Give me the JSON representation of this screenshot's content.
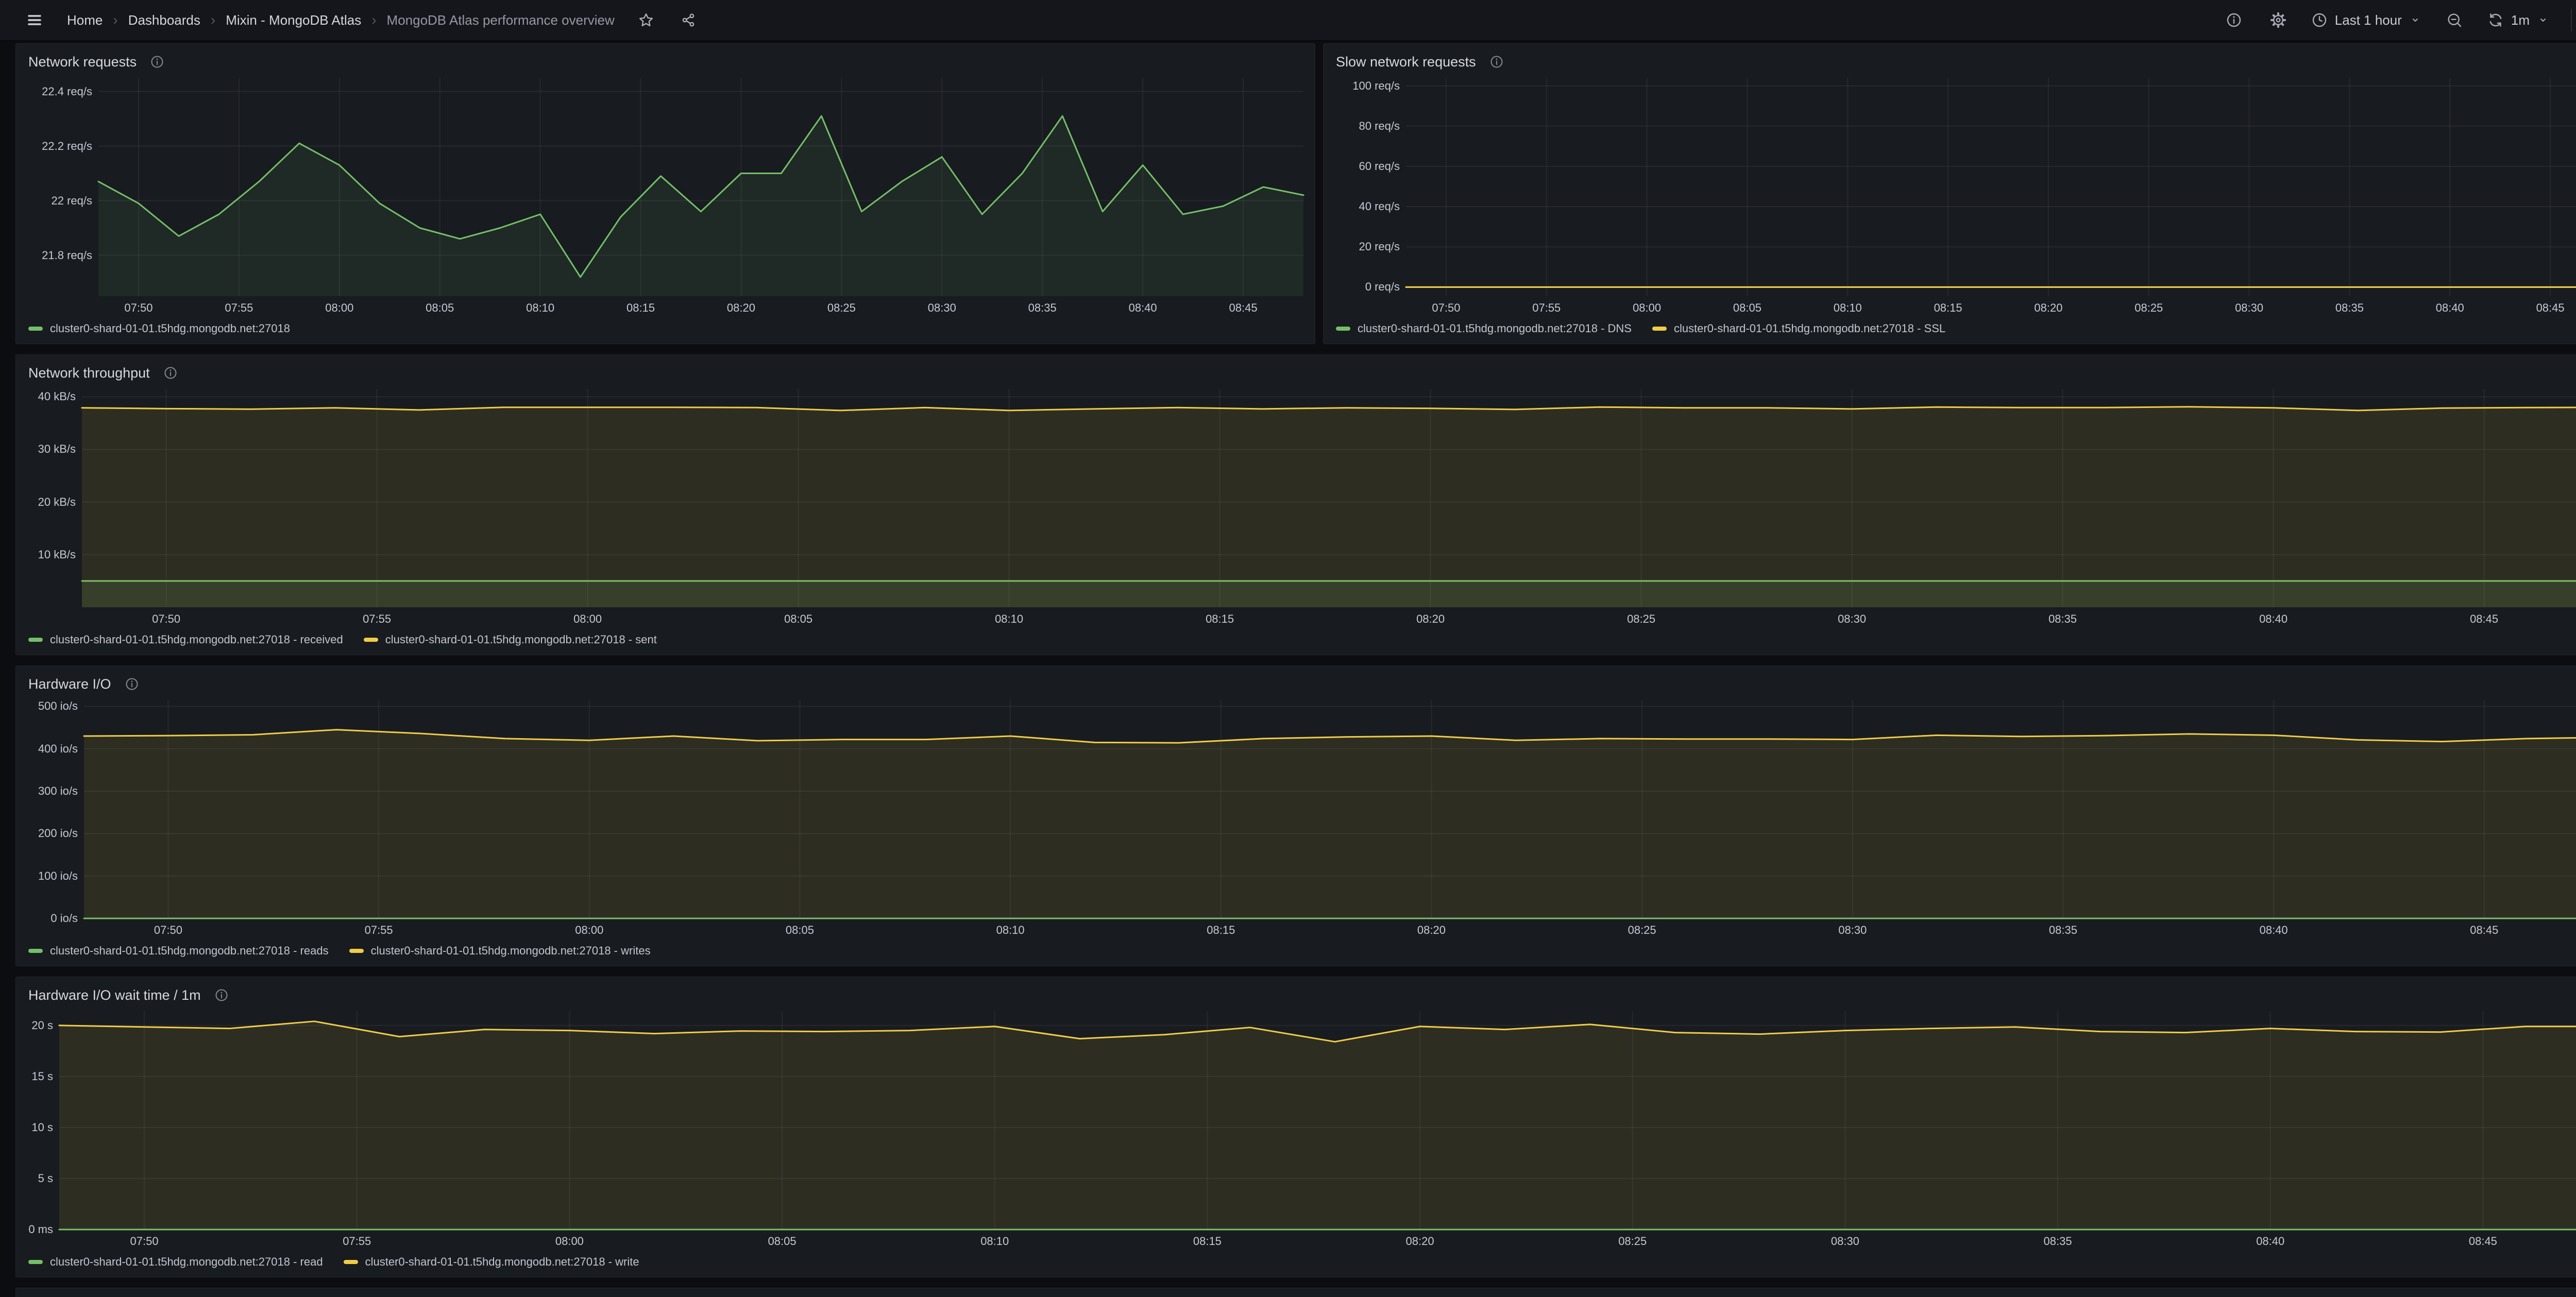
{
  "nav": {
    "breadcrumbs": [
      "Home",
      "Dashboards",
      "Mixin - MongoDB Atlas",
      "MongoDB Atlas performance overview"
    ],
    "time_range_label": "Last 1 hour",
    "refresh_interval_label": "1m"
  },
  "colors": {
    "green": "#73BF69",
    "yellow": "#F0CC47"
  },
  "chart_data": [
    {
      "type": "area",
      "title": "Network requests",
      "ylabel": "req/s",
      "x_domain": [
        0,
        60
      ],
      "x_step_minutes": 2,
      "point_count": 31,
      "x_tick_minutes": [
        2,
        7,
        12,
        17,
        22,
        27,
        32,
        37,
        42,
        47,
        52,
        57
      ],
      "x_tick_labels": [
        "07:50",
        "07:55",
        "08:00",
        "08:05",
        "08:10",
        "08:15",
        "08:20",
        "08:25",
        "08:30",
        "08:35",
        "08:40",
        "08:45"
      ],
      "y_domain": [
        21.65,
        22.45
      ],
      "y_ticks": [
        {
          "v": 21.8,
          "label": "21.8 req/s"
        },
        {
          "v": 22.0,
          "label": "22 req/s"
        },
        {
          "v": 22.2,
          "label": "22.2 req/s"
        },
        {
          "v": 22.4,
          "label": "22.4 req/s"
        }
      ],
      "grid": true,
      "legend_position": "bottom",
      "series": [
        {
          "name": "cluster0-shard-01-01.t5hdg.mongodb.net:27018",
          "color": "green",
          "fill_opacity": 0.09,
          "values": [
            22.07,
            21.99,
            21.87,
            21.95,
            22.07,
            22.21,
            22.13,
            21.99,
            21.9,
            21.86,
            21.9,
            21.95,
            21.72,
            21.94,
            22.09,
            21.96,
            22.1,
            22.1,
            22.31,
            21.96,
            22.07,
            22.16,
            21.95,
            22.1,
            22.31,
            21.96,
            22.13,
            21.95,
            21.98,
            22.05,
            22.02
          ]
        }
      ]
    },
    {
      "type": "area",
      "title": "Slow network requests",
      "ylabel": "req/s",
      "x_domain": [
        0,
        60
      ],
      "x_step_minutes": 2,
      "point_count": 31,
      "x_tick_minutes": [
        2,
        7,
        12,
        17,
        22,
        27,
        32,
        37,
        42,
        47,
        52,
        57
      ],
      "x_tick_labels": [
        "07:50",
        "07:55",
        "08:00",
        "08:05",
        "08:10",
        "08:15",
        "08:20",
        "08:25",
        "08:30",
        "08:35",
        "08:40",
        "08:45"
      ],
      "y_domain": [
        -4.5,
        104
      ],
      "y_ticks": [
        {
          "v": 0,
          "label": "0 req/s"
        },
        {
          "v": 20,
          "label": "20 req/s"
        },
        {
          "v": 40,
          "label": "40 req/s"
        },
        {
          "v": 60,
          "label": "60 req/s"
        },
        {
          "v": 80,
          "label": "80 req/s"
        },
        {
          "v": 100,
          "label": "100 req/s"
        }
      ],
      "grid": true,
      "legend_position": "bottom",
      "series": [
        {
          "name": "cluster0-shard-01-01.t5hdg.mongodb.net:27018 - DNS",
          "color": "green",
          "fill_opacity": 0,
          "value_const": 0
        },
        {
          "name": "cluster0-shard-01-01.t5hdg.mongodb.net:27018 - SSL",
          "color": "yellow",
          "fill_opacity": 0,
          "value_const": 0
        }
      ]
    },
    {
      "type": "area",
      "title": "Network throughput",
      "ylabel": "kB/s",
      "x_domain": [
        0,
        60
      ],
      "x_step_minutes": 2,
      "point_count": 31,
      "x_tick_minutes": [
        2,
        7,
        12,
        17,
        22,
        27,
        32,
        37,
        42,
        47,
        52,
        57
      ],
      "x_tick_labels": [
        "07:50",
        "07:55",
        "08:00",
        "08:05",
        "08:10",
        "08:15",
        "08:20",
        "08:25",
        "08:30",
        "08:35",
        "08:40",
        "08:45"
      ],
      "y_domain": [
        0,
        41.5
      ],
      "y_ticks": [
        {
          "v": 10,
          "label": "10 kB/s"
        },
        {
          "v": 20,
          "label": "20 kB/s"
        },
        {
          "v": 30,
          "label": "30 kB/s"
        },
        {
          "v": 40,
          "label": "40 kB/s"
        }
      ],
      "grid": true,
      "legend_position": "bottom",
      "series": [
        {
          "name": "cluster0-shard-01-01.t5hdg.mongodb.net:27018 - received",
          "color": "green",
          "fill_opacity": 0.12,
          "value_const": 5.0
        },
        {
          "name": "cluster0-shard-01-01.t5hdg.mongodb.net:27018 - sent",
          "color": "yellow",
          "fill_opacity": 0.1,
          "values": [
            37.9,
            37.75,
            37.65,
            37.9,
            37.5,
            38.0,
            38.0,
            38.0,
            37.95,
            37.4,
            37.95,
            37.4,
            37.7,
            37.95,
            37.7,
            37.9,
            37.8,
            37.6,
            38.05,
            37.9,
            37.9,
            37.7,
            38.05,
            37.95,
            37.95,
            38.1,
            37.9,
            37.4,
            37.85,
            37.95,
            38.0
          ]
        }
      ]
    },
    {
      "type": "area",
      "title": "Hardware I/O",
      "ylabel": "io/s",
      "x_domain": [
        0,
        60
      ],
      "x_step_minutes": 2,
      "point_count": 31,
      "x_tick_minutes": [
        2,
        7,
        12,
        17,
        22,
        27,
        32,
        37,
        42,
        47,
        52,
        57
      ],
      "x_tick_labels": [
        "07:50",
        "07:55",
        "08:00",
        "08:05",
        "08:10",
        "08:15",
        "08:20",
        "08:25",
        "08:30",
        "08:35",
        "08:40",
        "08:45"
      ],
      "y_domain": [
        0,
        515
      ],
      "y_ticks": [
        {
          "v": 0,
          "label": "0 io/s"
        },
        {
          "v": 100,
          "label": "100 io/s"
        },
        {
          "v": 200,
          "label": "200 io/s"
        },
        {
          "v": 300,
          "label": "300 io/s"
        },
        {
          "v": 400,
          "label": "400 io/s"
        },
        {
          "v": 500,
          "label": "500 io/s"
        }
      ],
      "grid": true,
      "legend_position": "bottom",
      "series": [
        {
          "name": "cluster0-shard-01-01.t5hdg.mongodb.net:27018 - reads",
          "color": "green",
          "fill_opacity": 0.1,
          "value_const": 0
        },
        {
          "name": "cluster0-shard-01-01.t5hdg.mongodb.net:27018 - writes",
          "color": "yellow",
          "fill_opacity": 0.1,
          "values": [
            430,
            431,
            433,
            445,
            436,
            424,
            420,
            430,
            419,
            422,
            422,
            430,
            415,
            414,
            424,
            428,
            430,
            420,
            424,
            423,
            423,
            422,
            432,
            429,
            431,
            435,
            432,
            421,
            417,
            424,
            427
          ]
        }
      ]
    },
    {
      "type": "area",
      "title": "Hardware I/O wait time / 1m",
      "ylabel": "s",
      "x_domain": [
        0,
        60
      ],
      "x_step_minutes": 2,
      "point_count": 31,
      "x_tick_minutes": [
        2,
        7,
        12,
        17,
        22,
        27,
        32,
        37,
        42,
        47,
        52,
        57
      ],
      "x_tick_labels": [
        "07:50",
        "07:55",
        "08:00",
        "08:05",
        "08:10",
        "08:15",
        "08:20",
        "08:25",
        "08:30",
        "08:35",
        "08:40",
        "08:45"
      ],
      "y_domain": [
        0,
        21.4
      ],
      "y_ticks": [
        {
          "v": 0,
          "label": "0 ms"
        },
        {
          "v": 5,
          "label": "5 s"
        },
        {
          "v": 10,
          "label": "10 s"
        },
        {
          "v": 15,
          "label": "15 s"
        },
        {
          "v": 20,
          "label": "20 s"
        }
      ],
      "grid": true,
      "legend_position": "bottom",
      "series": [
        {
          "name": "cluster0-shard-01-01.t5hdg.mongodb.net:27018 - read",
          "color": "green",
          "fill_opacity": 0.1,
          "value_const": 0
        },
        {
          "name": "cluster0-shard-01-01.t5hdg.mongodb.net:27018 - write",
          "color": "yellow",
          "fill_opacity": 0.1,
          "values": [
            20.0,
            19.85,
            19.7,
            20.4,
            18.9,
            19.6,
            19.5,
            19.2,
            19.45,
            19.4,
            19.5,
            19.9,
            18.7,
            19.1,
            19.8,
            18.4,
            19.9,
            19.6,
            20.1,
            19.3,
            19.15,
            19.5,
            19.7,
            19.85,
            19.4,
            19.3,
            19.7,
            19.4,
            19.35,
            19.9,
            19.9
          ]
        }
      ]
    }
  ]
}
